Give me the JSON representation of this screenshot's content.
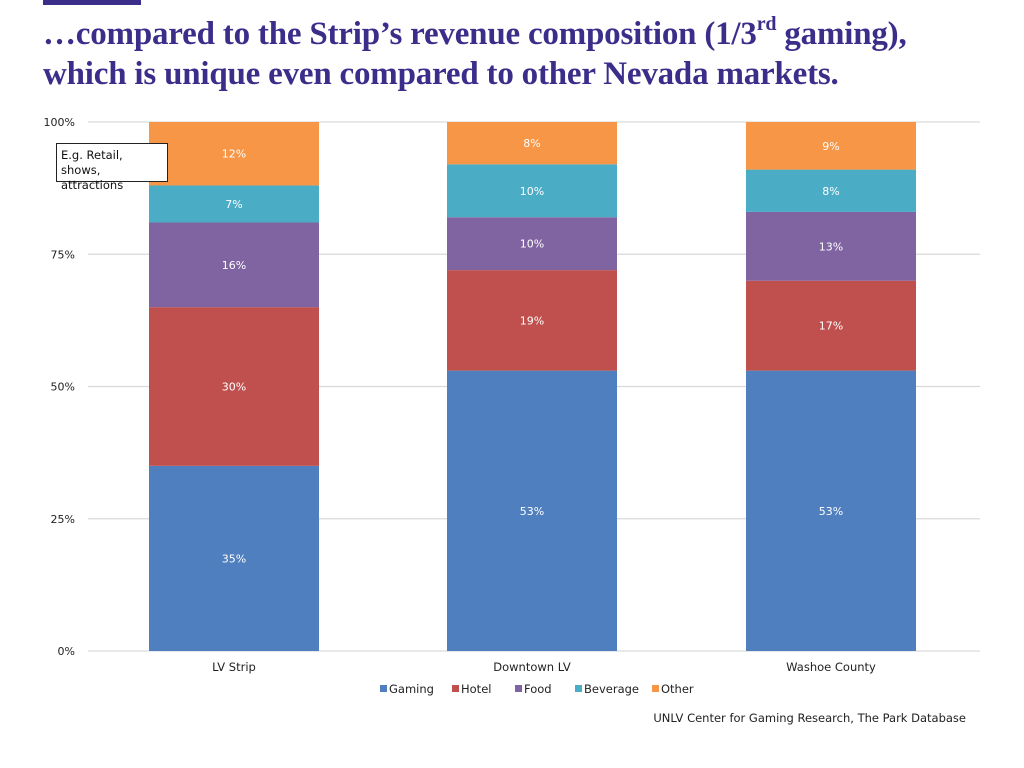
{
  "slide": {
    "accent_color": "#3b2e8a",
    "title_part1": "…compared to the Strip’s revenue composition (1/3",
    "title_sup": "rd",
    "title_part2": " gaming),",
    "title_line2": "which is unique even compared to other Nevada markets.",
    "callout_text": "E.g. Retail, shows, attractions",
    "source": "UNLV Center for Gaming Research, The Park Database"
  },
  "chart_data": {
    "type": "bar",
    "stacked": true,
    "percent_stacked": true,
    "title": "",
    "xlabel": "",
    "ylabel": "",
    "ylim": [
      0,
      100
    ],
    "y_ticks": [
      0,
      25,
      50,
      75,
      100
    ],
    "y_tick_labels": [
      "0%",
      "25%",
      "50%",
      "75%",
      "100%"
    ],
    "grid": true,
    "legend_position": "bottom",
    "categories": [
      "LV Strip",
      "Downtown LV",
      "Washoe County"
    ],
    "series": [
      {
        "name": "Gaming",
        "color": "#4f7fbe",
        "values": [
          35,
          53,
          53
        ]
      },
      {
        "name": "Hotel",
        "color": "#c0504d",
        "values": [
          30,
          19,
          17
        ]
      },
      {
        "name": "Food",
        "color": "#8064a2",
        "values": [
          16,
          10,
          13
        ]
      },
      {
        "name": "Beverage",
        "color": "#4bacc6",
        "values": [
          7,
          10,
          8
        ]
      },
      {
        "name": "Other",
        "color": "#f79646",
        "values": [
          12,
          8,
          9
        ]
      }
    ],
    "data_labels": [
      [
        "35%",
        "53%",
        "53%"
      ],
      [
        "30%",
        "19%",
        "17%"
      ],
      [
        "16%",
        "10%",
        "13%"
      ],
      [
        "7%",
        "10%",
        "8%"
      ],
      [
        "12%",
        "8%",
        "9%"
      ]
    ],
    "annotation": "E.g. Retail, shows, attractions"
  }
}
